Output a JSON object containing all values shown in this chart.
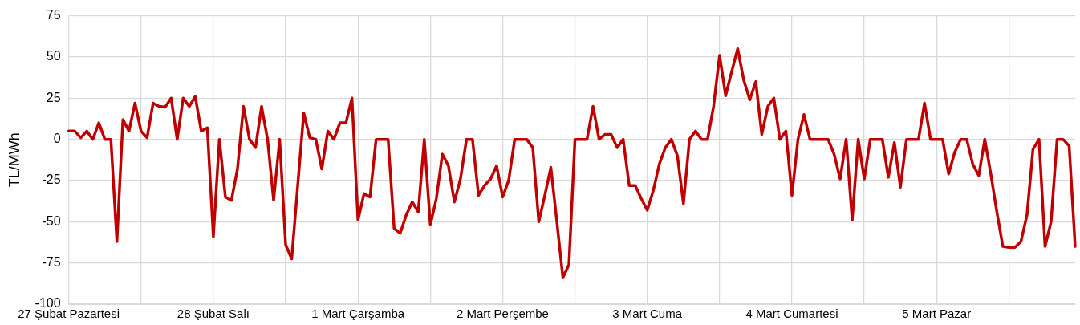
{
  "chart_data": {
    "type": "line",
    "ylabel": "TL/MWh",
    "categories": [
      "27 Şubat Pazartesi",
      null,
      null,
      null,
      null,
      null,
      null,
      null,
      null,
      null,
      null,
      null,
      null,
      null,
      null,
      null,
      null,
      null,
      null,
      null,
      null,
      null,
      null,
      null,
      "28 Şubat Salı",
      null,
      null,
      null,
      null,
      null,
      null,
      null,
      null,
      null,
      null,
      null,
      null,
      null,
      null,
      null,
      null,
      null,
      null,
      null,
      null,
      null,
      null,
      null,
      "1 Mart Çarşamba",
      null,
      null,
      null,
      null,
      null,
      null,
      null,
      null,
      null,
      null,
      null,
      null,
      null,
      null,
      null,
      null,
      null,
      null,
      null,
      null,
      null,
      null,
      null,
      "2 Mart Perşembe",
      null,
      null,
      null,
      null,
      null,
      null,
      null,
      null,
      null,
      null,
      null,
      null,
      null,
      null,
      null,
      null,
      null,
      null,
      null,
      null,
      null,
      null,
      null,
      "3 Mart Cuma",
      null,
      null,
      null,
      null,
      null,
      null,
      null,
      null,
      null,
      null,
      null,
      null,
      null,
      null,
      null,
      null,
      null,
      null,
      null,
      null,
      null,
      null,
      null,
      "4 Mart Cumartesi",
      null,
      null,
      null,
      null,
      null,
      null,
      null,
      null,
      null,
      null,
      null,
      null,
      null,
      null,
      null,
      null,
      null,
      null,
      null,
      null,
      null,
      null,
      null,
      "5 Mart Pazar",
      null,
      null,
      null,
      null,
      null,
      null,
      null,
      null,
      null,
      null,
      null,
      null,
      null,
      null,
      null,
      null,
      null,
      null,
      null,
      null,
      null,
      null,
      null
    ],
    "series": [
      {
        "color": "#c00000",
        "values": [
          5,
          5,
          1,
          5,
          0,
          10,
          0,
          0,
          -62,
          12,
          5,
          22,
          5,
          1,
          22,
          20,
          19.5,
          25,
          0,
          25,
          20,
          26,
          5,
          7,
          -59,
          0,
          -35,
          -37,
          -18,
          20,
          0,
          -5,
          20,
          0,
          -37,
          0,
          -64,
          -72.5,
          -28,
          16,
          1,
          0,
          -18,
          5,
          0,
          10,
          10,
          25,
          -49,
          -33,
          -35,
          0,
          0,
          0,
          -54,
          -57,
          -46,
          -38,
          -44,
          0,
          -52,
          -36,
          -9,
          -16,
          -38,
          -24,
          0,
          0,
          -34,
          -28,
          -24,
          -16,
          -35,
          -25,
          0,
          0,
          0,
          -5,
          -50,
          -34,
          -17,
          -50,
          -84,
          -76,
          0,
          0,
          0,
          20,
          0,
          3,
          3,
          -5,
          0,
          -28,
          -28,
          -36,
          -43,
          -31,
          -15,
          -5,
          0,
          -10,
          -39,
          0,
          5,
          0,
          0,
          20,
          51,
          26.5,
          41,
          55,
          36,
          24,
          35,
          3,
          20,
          25,
          0,
          5,
          -34,
          0,
          15,
          0,
          0,
          0,
          0,
          -9,
          -24,
          0,
          -49,
          0,
          -24,
          0,
          0,
          0,
          -23,
          -2,
          -29,
          0,
          0,
          0,
          22,
          0,
          0,
          0,
          -21,
          -8,
          0,
          0,
          -15,
          -22,
          0,
          -21,
          -44,
          -65,
          -65.5,
          -65.5,
          -62,
          -46,
          -6,
          0,
          -65,
          -50,
          0,
          0,
          -4,
          -65
        ]
      }
    ],
    "ylim": [
      -100,
      75
    ],
    "yticks": [
      -100,
      -75,
      -50,
      -25,
      0,
      25,
      50,
      75
    ],
    "grid": true,
    "legend": false,
    "marker": "none",
    "line_style": "solid"
  }
}
